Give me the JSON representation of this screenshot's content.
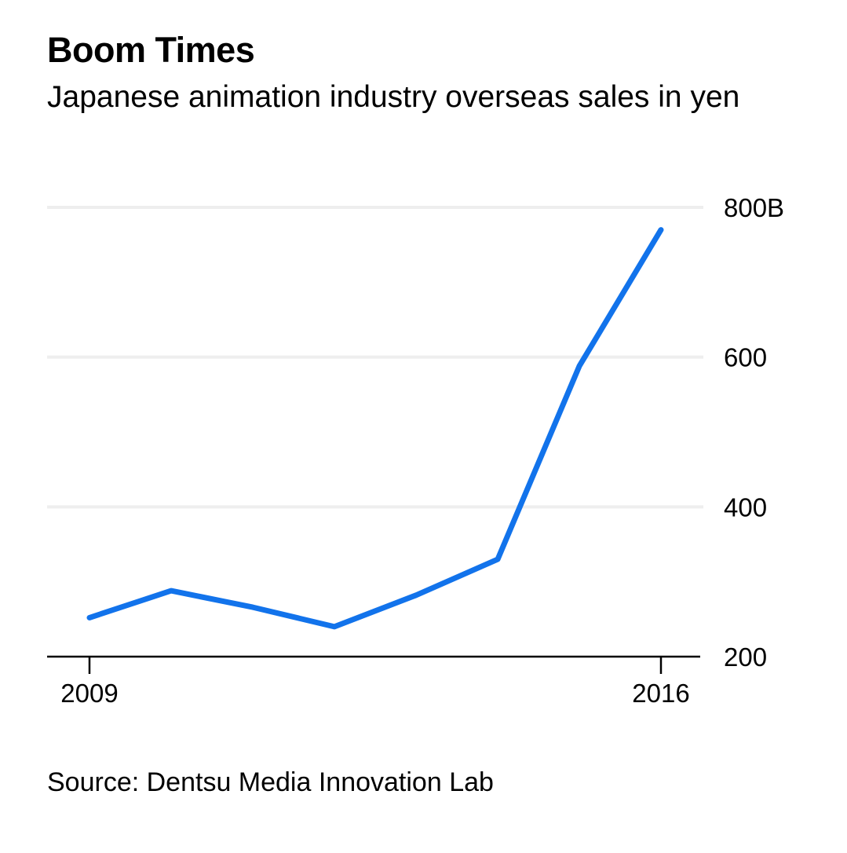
{
  "title": "Boom Times",
  "subtitle": "Japanese animation industry overseas sales in yen",
  "source": "Source: Dentsu Media Innovation Lab",
  "colors": {
    "line": "#1273eb",
    "grid": "#eeeeee",
    "axis": "#000000"
  },
  "chart_data": {
    "type": "line",
    "title": "Boom Times",
    "subtitle": "Japanese animation industry overseas sales in yen",
    "xlabel": "",
    "ylabel": "",
    "x": [
      2009,
      2010,
      2011,
      2012,
      2013,
      2014,
      2015,
      2016
    ],
    "series": [
      {
        "values": [
          252,
          288,
          266,
          240,
          282,
          330,
          588,
          770
        ]
      }
    ],
    "xlim": [
      2009,
      2016
    ],
    "ylim": [
      200,
      800
    ],
    "x_ticks": [
      {
        "value": 2009,
        "label": "2009"
      },
      {
        "value": 2016,
        "label": "2016"
      }
    ],
    "y_ticks": [
      {
        "value": 800,
        "label": "800B"
      },
      {
        "value": 600,
        "label": "600"
      },
      {
        "value": 400,
        "label": "400"
      },
      {
        "value": 200,
        "label": "200"
      }
    ],
    "grid": true,
    "y_axis_position": "right",
    "legend": "none"
  }
}
